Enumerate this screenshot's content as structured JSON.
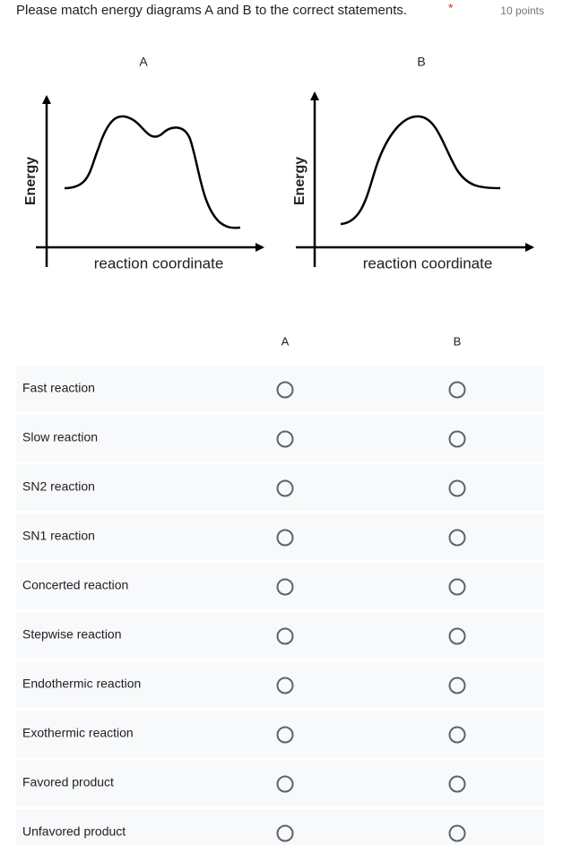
{
  "question": {
    "title": "Please match energy diagrams A and B to the correct statements.",
    "required_mark": "*",
    "points": "10 points"
  },
  "diagrams": [
    {
      "label": "A",
      "y_axis": "Energy",
      "x_axis": "reaction coordinate"
    },
    {
      "label": "B",
      "y_axis": "Energy",
      "x_axis": "reaction coordinate"
    }
  ],
  "grid": {
    "columns": [
      "A",
      "B"
    ],
    "rows": [
      "Fast reaction",
      "Slow reaction",
      "SN2 reaction",
      "SN1 reaction",
      "Concerted reaction",
      "Stepwise reaction",
      "Endothermic reaction",
      "Exothermic reaction",
      "Favored product",
      "Unfavored product"
    ]
  }
}
